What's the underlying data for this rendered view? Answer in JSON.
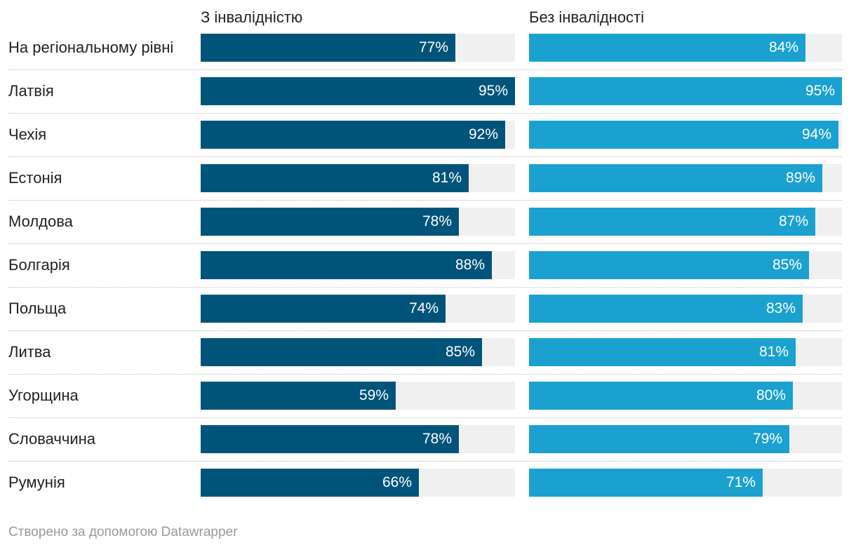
{
  "chart_data": {
    "type": "bar",
    "orientation": "horizontal",
    "categories": [
      "На регіональному рівні",
      "Латвія",
      "Чехія",
      "Естонія",
      "Молдова",
      "Болгарія",
      "Польща",
      "Литва",
      "Угорщина",
      "Словаччина",
      "Румунія"
    ],
    "series": [
      {
        "name": "З інвалідністю",
        "color": "#00547a",
        "values": [
          77,
          95,
          92,
          81,
          78,
          88,
          74,
          85,
          59,
          78,
          66
        ]
      },
      {
        "name": "Без інвалідності",
        "color": "#1aa1d0",
        "values": [
          84,
          95,
          94,
          89,
          87,
          85,
          83,
          81,
          80,
          79,
          71
        ]
      }
    ],
    "value_suffix": "%",
    "xlim": [
      0,
      95
    ],
    "track_color": "#f0f0f0"
  },
  "footer": {
    "credit": "Створено за допомогою Datawrapper"
  }
}
